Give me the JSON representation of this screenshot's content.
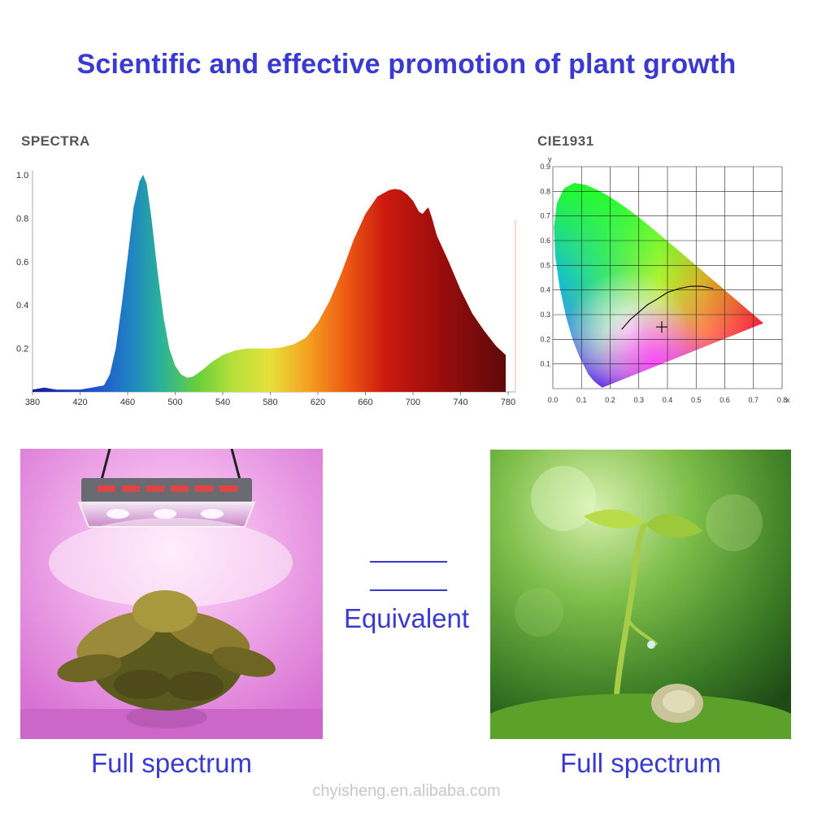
{
  "headline": "Scientific and effective promotion of plant growth",
  "chart_data": [
    {
      "type": "area",
      "title": "SPECTRA",
      "xlabel": "",
      "ylabel": "",
      "xlim": [
        380,
        780
      ],
      "ylim": [
        0,
        1.0
      ],
      "x_ticks": [
        "380",
        "420",
        "460",
        "500",
        "540",
        "580",
        "620",
        "660",
        "700",
        "740",
        "780"
      ],
      "y_ticks": [
        "0.2",
        "0.4",
        "0.6",
        "0.8",
        "1.0"
      ],
      "grid": false,
      "legend": "none",
      "series": [
        {
          "x": [
            380,
            390,
            400,
            410,
            420,
            430,
            440,
            445,
            450,
            455,
            460,
            465,
            470,
            473,
            476,
            480,
            485,
            490,
            495,
            500,
            505,
            510,
            515,
            520,
            525,
            530,
            540,
            550,
            560,
            570,
            580,
            590,
            600,
            610,
            620,
            630,
            640,
            650,
            660,
            670,
            680,
            685,
            690,
            695,
            700,
            705,
            708,
            711,
            713,
            716,
            720,
            730,
            740,
            750,
            760,
            770,
            778
          ],
          "y": [
            0.01,
            0.02,
            0.01,
            0.01,
            0.01,
            0.02,
            0.03,
            0.08,
            0.2,
            0.4,
            0.62,
            0.85,
            0.97,
            1.0,
            0.96,
            0.8,
            0.56,
            0.35,
            0.2,
            0.12,
            0.08,
            0.065,
            0.07,
            0.09,
            0.11,
            0.135,
            0.17,
            0.19,
            0.2,
            0.2,
            0.2,
            0.205,
            0.22,
            0.25,
            0.32,
            0.42,
            0.55,
            0.7,
            0.82,
            0.9,
            0.93,
            0.935,
            0.93,
            0.91,
            0.88,
            0.83,
            0.82,
            0.84,
            0.85,
            0.8,
            0.72,
            0.6,
            0.47,
            0.36,
            0.28,
            0.21,
            0.17
          ]
        }
      ]
    },
    {
      "type": "scatter",
      "title": "CIE1931",
      "xlabel": "x",
      "ylabel": "y",
      "xlim": [
        0,
        0.8
      ],
      "ylim": [
        0,
        0.9
      ],
      "x_ticks": [
        "0.0",
        "0.1",
        "0.2",
        "0.3",
        "0.4",
        "0.5",
        "0.6",
        "0.7",
        "0.8"
      ],
      "y_ticks": [
        "0.1",
        "0.2",
        "0.3",
        "0.4",
        "0.5",
        "0.6",
        "0.7",
        "0.8",
        "0.9"
      ],
      "grid": true,
      "legend": "none",
      "gamut_locus": {
        "x": [
          0.1741,
          0.1738,
          0.173,
          0.1714,
          0.1689,
          0.1644,
          0.1566,
          0.144,
          0.1241,
          0.0913,
          0.0687,
          0.0454,
          0.0235,
          0.0082,
          0.0039,
          0.0139,
          0.0389,
          0.0743,
          0.1142,
          0.1547,
          0.1929,
          0.2296,
          0.2658,
          0.3016,
          0.3373,
          0.3731,
          0.4087,
          0.4441,
          0.4788,
          0.5125,
          0.5448,
          0.5752,
          0.6029,
          0.627,
          0.6482,
          0.6658,
          0.6915,
          0.7079,
          0.7347
        ],
        "y": [
          0.005,
          0.0049,
          0.0048,
          0.0051,
          0.0069,
          0.0109,
          0.0177,
          0.0297,
          0.0578,
          0.1327,
          0.2007,
          0.295,
          0.4127,
          0.5384,
          0.6548,
          0.7502,
          0.812,
          0.8338,
          0.8262,
          0.8059,
          0.7816,
          0.7543,
          0.7243,
          0.6923,
          0.6589,
          0.6245,
          0.5896,
          0.5547,
          0.5202,
          0.4866,
          0.4544,
          0.4242,
          0.3965,
          0.3725,
          0.3514,
          0.334,
          0.3083,
          0.292,
          0.2653
        ]
      },
      "planckian_locus": {
        "x": [
          0.24,
          0.27,
          0.3,
          0.33,
          0.36,
          0.4,
          0.44,
          0.48,
          0.52,
          0.56
        ],
        "y": [
          0.24,
          0.28,
          0.31,
          0.34,
          0.36,
          0.39,
          0.405,
          0.415,
          0.415,
          0.405
        ]
      },
      "marker": {
        "x": 0.38,
        "y": 0.25
      }
    }
  ],
  "photos": {
    "left_icon": "grow-light-plant-photo",
    "right_icon": "seedling-sunlight-photo"
  },
  "captions": {
    "left": "Full spectrum",
    "right": "Full spectrum",
    "equivalent": "Equivalent"
  },
  "watermark": "chyisheng.en.alibaba.com",
  "colors": {
    "accent": "#3a3ad0"
  }
}
